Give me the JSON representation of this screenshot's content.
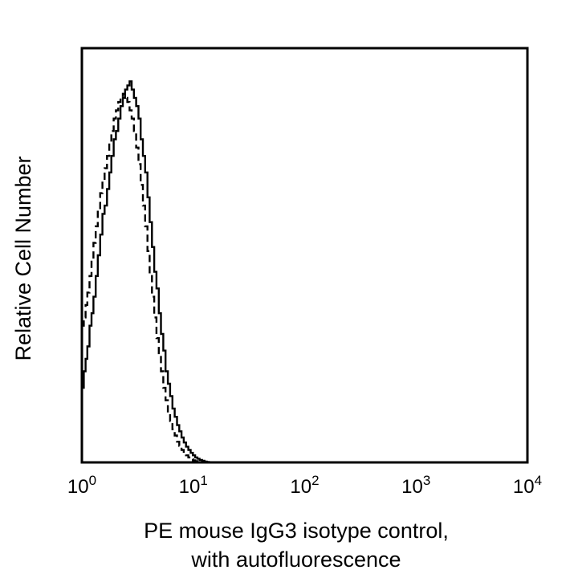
{
  "chart_data": {
    "type": "line",
    "title": "",
    "xlabel": [
      "PE mouse IgG3 isotype control,",
      "with autofluorescence"
    ],
    "ylabel": "Relative Cell Number",
    "x_scale": "log",
    "xlim": [
      1,
      10000
    ],
    "ylim": [
      0,
      100
    ],
    "x_ticks": [
      {
        "base": "10",
        "exp": "0"
      },
      {
        "base": "10",
        "exp": "1"
      },
      {
        "base": "10",
        "exp": "2"
      },
      {
        "base": "10",
        "exp": "3"
      },
      {
        "base": "10",
        "exp": "4"
      }
    ],
    "y_ticks": [],
    "grid": false,
    "legend": false,
    "series": [
      {
        "style": "solid",
        "color": "#000000",
        "x": [
          1.0,
          1.04,
          1.08,
          1.12,
          1.17,
          1.22,
          1.27,
          1.33,
          1.39,
          1.46,
          1.53,
          1.6,
          1.68,
          1.76,
          1.84,
          1.93,
          2.02,
          2.12,
          2.22,
          2.33,
          2.44,
          2.56,
          2.68,
          2.8,
          2.93,
          3.07,
          3.22,
          3.37,
          3.53,
          3.7,
          3.88,
          4.06,
          4.26,
          4.46,
          4.67,
          4.9,
          5.13,
          5.38,
          5.64,
          5.91,
          6.2,
          6.5,
          6.81,
          7.14,
          7.48,
          7.84,
          8.22,
          8.61,
          9.03,
          9.47,
          9.92,
          10.4,
          10.9,
          11.4,
          12.0,
          12.6,
          13.2,
          13.8,
          14.5,
          15.2
        ],
        "y": [
          18,
          22,
          25,
          28,
          33,
          36,
          40,
          45,
          50,
          55,
          60,
          62,
          66,
          70,
          74,
          78,
          80,
          83,
          86,
          88,
          90,
          91,
          92,
          90,
          88,
          86,
          83,
          78,
          74,
          70,
          64,
          58,
          52,
          46,
          42,
          36,
          31,
          27,
          22,
          19,
          16,
          13,
          11,
          9,
          7.5,
          6,
          4.8,
          3.8,
          3,
          2.3,
          1.7,
          1.2,
          0.9,
          0.6,
          0.4,
          0.2,
          0.1,
          0.05,
          0,
          0
        ]
      },
      {
        "style": "dashed",
        "color": "#000000",
        "x": [
          1.0,
          1.04,
          1.08,
          1.12,
          1.17,
          1.22,
          1.27,
          1.33,
          1.39,
          1.46,
          1.53,
          1.6,
          1.68,
          1.76,
          1.84,
          1.93,
          2.02,
          2.12,
          2.22,
          2.33,
          2.44,
          2.56,
          2.68,
          2.8,
          2.93,
          3.07,
          3.22,
          3.37,
          3.53,
          3.7,
          3.88,
          4.06,
          4.26,
          4.46,
          4.67,
          4.9,
          5.13,
          5.38,
          5.64,
          5.91,
          6.2,
          6.5,
          6.81,
          7.14,
          7.48,
          7.84,
          8.22,
          8.61,
          9.03,
          9.47,
          9.92,
          10.4,
          10.9,
          11.4,
          12.0,
          12.6,
          13.2,
          13.8,
          14.5,
          15.2
        ],
        "y": [
          33,
          35,
          38,
          41,
          45,
          49,
          53,
          57,
          61,
          65,
          68,
          71,
          74,
          77,
          80,
          83,
          85,
          87,
          88,
          89,
          88,
          87,
          85,
          83,
          80,
          76,
          72,
          67,
          62,
          57,
          51,
          45,
          40,
          35,
          30,
          26,
          22,
          18,
          15,
          12,
          10,
          8,
          6.5,
          5,
          4,
          3,
          2.3,
          1.7,
          1.2,
          0.8,
          0.5,
          0.3,
          0.2,
          0.1,
          0.05,
          0,
          0,
          0,
          0,
          0
        ]
      }
    ]
  }
}
